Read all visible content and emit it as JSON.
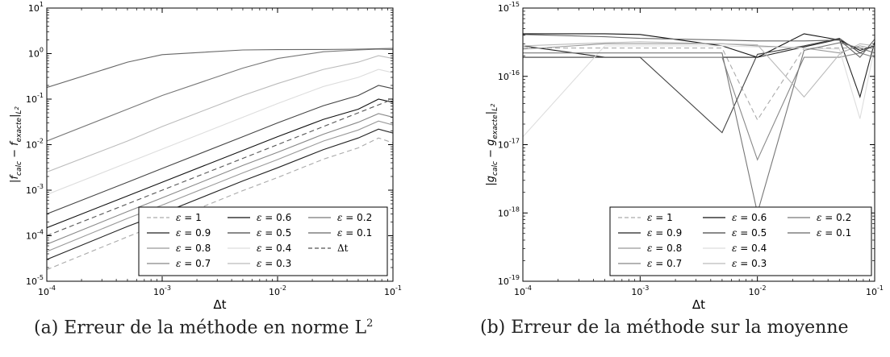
{
  "chart_data": [
    {
      "type": "line",
      "panel": "a",
      "caption": "(a) Erreur de la méthode en norme L",
      "caption_sup": "2",
      "xlabel": "Δt",
      "ylabel": "|f_calc − f_exacte|_{L²}",
      "x_scale": "log",
      "y_scale": "log",
      "xlim": [
        0.0001,
        0.1
      ],
      "ylim": [
        1e-05,
        10
      ],
      "x_ticks": [
        {
          "v": 0.0001,
          "b": "10",
          "e": "-4"
        },
        {
          "v": 0.001,
          "b": "10",
          "e": "-3"
        },
        {
          "v": 0.01,
          "b": "10",
          "e": "-2"
        },
        {
          "v": 0.1,
          "b": "10",
          "e": "-1"
        }
      ],
      "y_ticks": [
        {
          "v": 1e-05,
          "b": "10",
          "e": "-5"
        },
        {
          "v": 0.0001,
          "b": "10",
          "e": "-4"
        },
        {
          "v": 0.001,
          "b": "10",
          "e": "-3"
        },
        {
          "v": 0.01,
          "b": "10",
          "e": "-2"
        },
        {
          "v": 0.1,
          "b": "10",
          "e": "-1"
        },
        {
          "v": 1,
          "b": "10",
          "e": "0"
        },
        {
          "v": 10,
          "b": "10",
          "e": "1"
        }
      ],
      "legend_position": "lower-right",
      "legend_columns": 3,
      "x": [
        0.0001,
        0.0005,
        0.001,
        0.005,
        0.01,
        0.025,
        0.05,
        0.075,
        0.1
      ],
      "series": [
        {
          "name": "ε = 1",
          "label_var": "ε",
          "label_val": "1",
          "color": "#aaaaaa",
          "dash": true,
          "values": [
            1.8e-05,
            9.5e-05,
            0.00019,
            0.00098,
            0.0019,
            0.0048,
            0.0085,
            0.014,
            0.011
          ]
        },
        {
          "name": "ε = 0.9",
          "label_var": "ε",
          "label_val": "0.9",
          "color": "#222222",
          "dash": false,
          "values": [
            3e-05,
            0.00016,
            0.00031,
            0.0016,
            0.0031,
            0.0078,
            0.014,
            0.022,
            0.018
          ]
        },
        {
          "name": "ε = 0.8",
          "label_var": "ε",
          "label_val": "0.8",
          "color": "#999999",
          "dash": false,
          "values": [
            4.5e-05,
            0.00024,
            0.00047,
            0.0024,
            0.0047,
            0.012,
            0.021,
            0.033,
            0.027
          ]
        },
        {
          "name": "ε = 0.7",
          "label_var": "ε",
          "label_val": "0.7",
          "color": "#888888",
          "dash": false,
          "values": [
            6.5e-05,
            0.00034,
            0.00068,
            0.0035,
            0.0068,
            0.017,
            0.031,
            0.048,
            0.04
          ]
        },
        {
          "name": "ε = 0.6",
          "label_var": "ε",
          "label_val": "0.6",
          "color": "#111111",
          "dash": false,
          "values": [
            0.00015,
            0.00075,
            0.0015,
            0.0075,
            0.015,
            0.036,
            0.06,
            0.1,
            0.085
          ]
        },
        {
          "name": "ε = 0.5",
          "label_var": "ε",
          "label_val": "0.5",
          "color": "#444444",
          "dash": false,
          "values": [
            0.0003,
            0.0015,
            0.003,
            0.015,
            0.03,
            0.072,
            0.12,
            0.2,
            0.17
          ]
        },
        {
          "name": "ε = 0.4",
          "label_var": "ε",
          "label_val": "0.4",
          "color": "#dddddd",
          "dash": false,
          "values": [
            0.0008,
            0.004,
            0.008,
            0.04,
            0.08,
            0.19,
            0.3,
            0.45,
            0.38
          ]
        },
        {
          "name": "ε = 0.3",
          "label_var": "ε",
          "label_val": "0.3",
          "color": "#bbbbbb",
          "dash": false,
          "values": [
            0.0025,
            0.012,
            0.025,
            0.12,
            0.22,
            0.45,
            0.65,
            0.9,
            0.78
          ]
        },
        {
          "name": "ε = 0.2",
          "label_var": "ε",
          "label_val": "0.2",
          "color": "#777777",
          "dash": false,
          "values": [
            0.012,
            0.06,
            0.12,
            0.48,
            0.78,
            1.1,
            1.2,
            1.25,
            1.22
          ]
        },
        {
          "name": "ε = 0.1",
          "label_var": "ε",
          "label_val": "0.1",
          "color": "#666666",
          "dash": false,
          "values": [
            0.18,
            0.65,
            0.95,
            1.2,
            1.22,
            1.23,
            1.25,
            1.28,
            1.3
          ]
        },
        {
          "name": "Δt",
          "label_var": "",
          "label_val": "Δt",
          "color": "#555555",
          "dash": true,
          "values": [
            0.0001,
            0.0005,
            0.001,
            0.005,
            0.01,
            0.025,
            0.05,
            0.075,
            0.1
          ]
        }
      ]
    },
    {
      "type": "line",
      "panel": "b",
      "caption": "(b) Erreur de la méthode sur la moyenne",
      "caption_sup": "",
      "xlabel": "Δt",
      "ylabel": "|g_calc − g_exacte|_{L²}",
      "x_scale": "log",
      "y_scale": "log",
      "xlim": [
        0.0001,
        0.1
      ],
      "ylim": [
        1e-19,
        1e-15
      ],
      "x_ticks": [
        {
          "v": 0.0001,
          "b": "10",
          "e": "-4"
        },
        {
          "v": 0.001,
          "b": "10",
          "e": "-3"
        },
        {
          "v": 0.01,
          "b": "10",
          "e": "-2"
        },
        {
          "v": 0.1,
          "b": "10",
          "e": "-1"
        }
      ],
      "y_ticks": [
        {
          "v": 1e-19,
          "b": "10",
          "e": "-19"
        },
        {
          "v": 1e-18,
          "b": "10",
          "e": "-18"
        },
        {
          "v": 1e-17,
          "b": "10",
          "e": "-17"
        },
        {
          "v": 1e-16,
          "b": "10",
          "e": "-16"
        },
        {
          "v": 1e-15,
          "b": "10",
          "e": "-15"
        }
      ],
      "legend_position": "lower-right",
      "legend_columns": 3,
      "x": [
        0.0001,
        0.0005,
        0.001,
        0.005,
        0.01,
        0.025,
        0.05,
        0.075,
        0.1
      ],
      "series": [
        {
          "name": "ε = 1",
          "label_var": "ε",
          "label_val": "1",
          "color": "#aaaaaa",
          "dash": true,
          "values": [
            2.6e-16,
            2.6e-16,
            2.6e-16,
            2.6e-16,
            2.3e-17,
            2.6e-16,
            2.6e-16,
            2.6e-16,
            2.6e-16
          ]
        },
        {
          "name": "ε = 0.9",
          "label_var": "ε",
          "label_val": "0.9",
          "color": "#222222",
          "dash": false,
          "values": [
            2.8e-16,
            1.9e-16,
            1.9e-16,
            1.9e-16,
            1.9e-16,
            2.7e-16,
            3.5e-16,
            5e-17,
            3.2e-16
          ]
        },
        {
          "name": "ε = 0.8",
          "label_var": "ε",
          "label_val": "0.8",
          "color": "#999999",
          "dash": false,
          "values": [
            2.5e-16,
            3e-16,
            3e-16,
            3e-16,
            2.8e-16,
            2.6e-16,
            2.2e-16,
            2.8e-16,
            2.5e-16
          ]
        },
        {
          "name": "ε = 0.7",
          "label_var": "ε",
          "label_val": "0.7",
          "color": "#888888",
          "dash": false,
          "values": [
            1.9e-16,
            1.9e-16,
            1.9e-16,
            1.9e-16,
            6e-18,
            1.9e-16,
            1.9e-16,
            2.2e-16,
            1.9e-16
          ]
        },
        {
          "name": "ε = 0.6",
          "label_var": "ε",
          "label_val": "0.6",
          "color": "#111111",
          "dash": false,
          "values": [
            4.2e-16,
            4.2e-16,
            4.1e-16,
            2.8e-16,
            1.9e-16,
            4.2e-16,
            3.4e-16,
            2.4e-16,
            2.8e-16
          ]
        },
        {
          "name": "ε = 0.5",
          "label_var": "ε",
          "label_val": "0.5",
          "color": "#444444",
          "dash": false,
          "values": [
            1.9e-16,
            1.9e-16,
            1.9e-16,
            1.5e-17,
            2.1e-16,
            2.8e-16,
            3.6e-16,
            2.2e-16,
            2.9e-16
          ]
        },
        {
          "name": "ε = 0.4",
          "label_var": "ε",
          "label_val": "0.4",
          "color": "#dddddd",
          "dash": false,
          "values": [
            1.3e-17,
            2.8e-16,
            2.8e-16,
            2.8e-16,
            2.7e-16,
            2.6e-16,
            2.5e-16,
            2.4e-17,
            2.7e-16
          ]
        },
        {
          "name": "ε = 0.3",
          "label_var": "ε",
          "label_val": "0.3",
          "color": "#bbbbbb",
          "dash": false,
          "values": [
            2.8e-16,
            3.1e-16,
            3.2e-16,
            3e-16,
            2.9e-16,
            5e-17,
            2.1e-16,
            3e-16,
            2.8e-16
          ]
        },
        {
          "name": "ε = 0.2",
          "label_var": "ε",
          "label_val": "0.2",
          "color": "#777777",
          "dash": false,
          "values": [
            2.2e-16,
            2.2e-16,
            2.2e-16,
            2.2e-16,
            1e-18,
            2.4e-16,
            3.1e-16,
            2.6e-16,
            2.2e-16
          ]
        },
        {
          "name": "ε = 0.1",
          "label_var": "ε",
          "label_val": "0.1",
          "color": "#666666",
          "dash": false,
          "values": [
            4.1e-16,
            3.8e-16,
            3.6e-16,
            3.4e-16,
            3.3e-16,
            3.3e-16,
            3.4e-16,
            1.9e-16,
            3.5e-16
          ]
        }
      ]
    }
  ]
}
